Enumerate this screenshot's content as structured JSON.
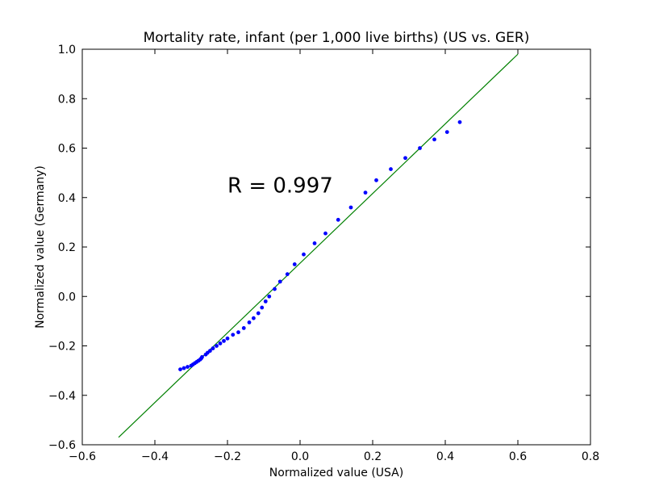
{
  "chart_data": {
    "type": "scatter",
    "title": "Mortality rate, infant (per 1,000 live births) (US vs. GER)",
    "xlabel": "Normalized value (USA)",
    "ylabel": "Normalized value (Germany)",
    "xlim": [
      -0.6,
      0.8
    ],
    "ylim": [
      -0.6,
      1.0
    ],
    "xticks": [
      "−0.6",
      "−0.4",
      "−0.2",
      "0.0",
      "0.2",
      "0.4",
      "0.6",
      "0.8"
    ],
    "yticks": [
      "−0.6",
      "−0.4",
      "−0.2",
      "0.0",
      "0.2",
      "0.4",
      "0.6",
      "0.8",
      "1.0"
    ],
    "annotation": {
      "text": "R = 0.997",
      "x": -0.2,
      "y": 0.42
    },
    "fit_line": {
      "color": "#008000",
      "x": [
        -0.5,
        0.6
      ],
      "y": [
        -0.57,
        0.98
      ]
    },
    "points_color": "#0000ff",
    "points": [
      [
        -0.33,
        -0.295
      ],
      [
        -0.32,
        -0.29
      ],
      [
        -0.31,
        -0.285
      ],
      [
        -0.3,
        -0.28
      ],
      [
        -0.295,
        -0.275
      ],
      [
        -0.29,
        -0.27
      ],
      [
        -0.285,
        -0.265
      ],
      [
        -0.28,
        -0.26
      ],
      [
        -0.275,
        -0.255
      ],
      [
        -0.272,
        -0.25
      ],
      [
        -0.27,
        -0.245
      ],
      [
        -0.26,
        -0.235
      ],
      [
        -0.255,
        -0.228
      ],
      [
        -0.248,
        -0.22
      ],
      [
        -0.24,
        -0.21
      ],
      [
        -0.23,
        -0.2
      ],
      [
        -0.22,
        -0.19
      ],
      [
        -0.21,
        -0.18
      ],
      [
        -0.2,
        -0.17
      ],
      [
        -0.185,
        -0.155
      ],
      [
        -0.17,
        -0.145
      ],
      [
        -0.155,
        -0.128
      ],
      [
        -0.14,
        -0.105
      ],
      [
        -0.128,
        -0.088
      ],
      [
        -0.115,
        -0.068
      ],
      [
        -0.105,
        -0.045
      ],
      [
        -0.095,
        -0.02
      ],
      [
        -0.085,
        0.0
      ],
      [
        -0.07,
        0.03
      ],
      [
        -0.055,
        0.06
      ],
      [
        -0.035,
        0.09
      ],
      [
        -0.015,
        0.13
      ],
      [
        0.01,
        0.17
      ],
      [
        0.04,
        0.215
      ],
      [
        0.07,
        0.255
      ],
      [
        0.105,
        0.31
      ],
      [
        0.14,
        0.36
      ],
      [
        0.18,
        0.42
      ],
      [
        0.21,
        0.47
      ],
      [
        0.25,
        0.515
      ],
      [
        0.29,
        0.56
      ],
      [
        0.33,
        0.6
      ],
      [
        0.37,
        0.635
      ],
      [
        0.405,
        0.665
      ],
      [
        0.44,
        0.705
      ]
    ]
  }
}
